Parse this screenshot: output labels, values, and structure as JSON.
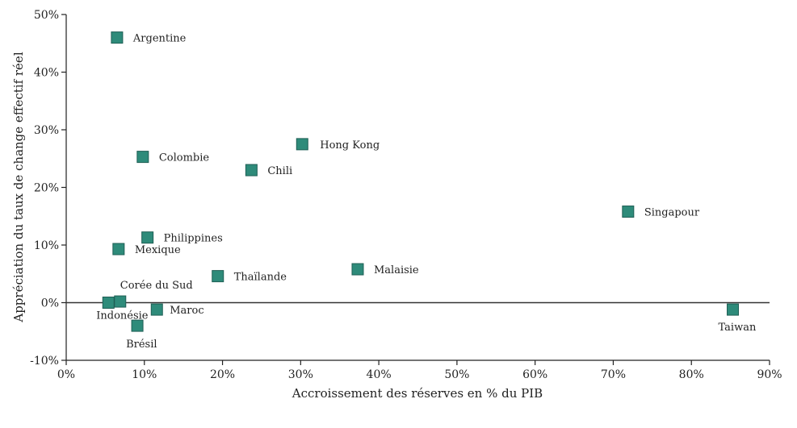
{
  "chart_data": {
    "type": "scatter",
    "title": "",
    "xlabel": "Accroissement des réserves en % du PIB",
    "ylabel": "Appréciation du taux de change effectif réel",
    "xlim": [
      0,
      90
    ],
    "ylim": [
      -10,
      50
    ],
    "x_ticks": [
      "0%",
      "10%",
      "20%",
      "30%",
      "40%",
      "50%",
      "60%",
      "70%",
      "80%",
      "90%"
    ],
    "y_ticks": [
      "-10%",
      "0%",
      "10%",
      "20%",
      "30%",
      "40%",
      "50%"
    ],
    "marker_color": "#2e8b7a",
    "grid": false,
    "points": [
      {
        "label": "Argentine",
        "x": 6.5,
        "y": 46
      },
      {
        "label": "Colombie",
        "x": 9.8,
        "y": 25.3
      },
      {
        "label": "Hong Kong",
        "x": 30.2,
        "y": 27.5
      },
      {
        "label": "Chili",
        "x": 23.7,
        "y": 23
      },
      {
        "label": "Singapour",
        "x": 71.9,
        "y": 15.8
      },
      {
        "label": "Philippines",
        "x": 10.4,
        "y": 11.3
      },
      {
        "label": "Mexique",
        "x": 6.7,
        "y": 9.3
      },
      {
        "label": "Malaisie",
        "x": 37.3,
        "y": 5.8
      },
      {
        "label": "Thaïlande",
        "x": 19.4,
        "y": 4.6
      },
      {
        "label": "Corée du Sud",
        "x": 6.9,
        "y": 0.2
      },
      {
        "label": "Indonésie",
        "x": 5.4,
        "y": 0
      },
      {
        "label": "Maroc",
        "x": 11.6,
        "y": -1.2
      },
      {
        "label": "Brésil",
        "x": 9.1,
        "y": -4
      },
      {
        "label": "Taiwan",
        "x": 85.3,
        "y": -1.2
      }
    ]
  }
}
